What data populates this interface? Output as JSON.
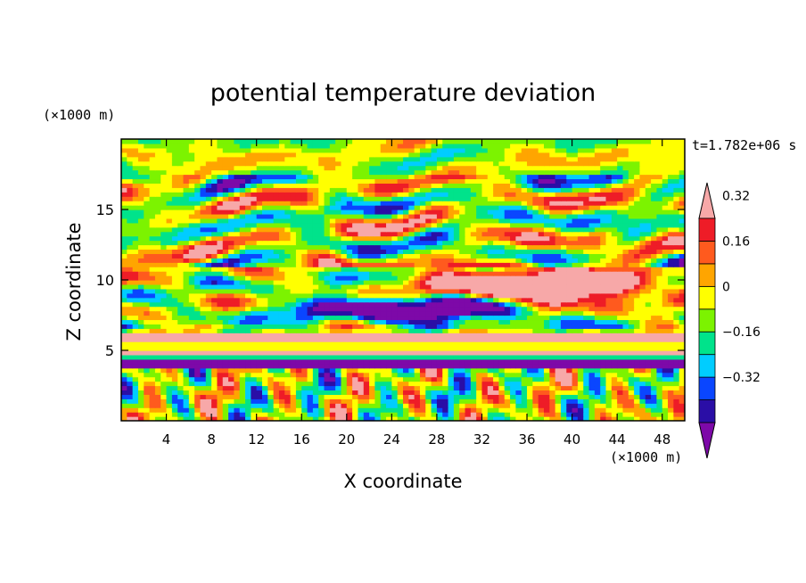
{
  "chart_data": {
    "type": "heatmap",
    "title": "potential temperature deviation",
    "xlabel": "X coordinate",
    "ylabel": "Z coordinate",
    "x_unit": "(×1000 m)",
    "y_unit": "(×1000 m)",
    "time_label": "t=1.782e+06 s",
    "xlim": [
      0,
      50
    ],
    "ylim": [
      0,
      20
    ],
    "x_ticks": [
      4,
      8,
      12,
      16,
      20,
      24,
      28,
      32,
      36,
      40,
      44,
      48
    ],
    "y_ticks": [
      5,
      10,
      15
    ],
    "colorbar": {
      "levels": [
        -0.48,
        -0.4,
        -0.32,
        -0.24,
        -0.16,
        -0.08,
        0,
        0.08,
        0.16,
        0.24,
        0.32,
        0.4
      ],
      "labels": [
        "0.32",
        "0.16",
        "0",
        "−0.16",
        "−0.32"
      ],
      "label_values": [
        0.32,
        0.16,
        0,
        -0.16,
        -0.32
      ],
      "colors": [
        "#7d09a8",
        "#2a0ea6",
        "#0a46ff",
        "#00cdff",
        "#00e38b",
        "#7cf300",
        "#ffff00",
        "#ffa500",
        "#ff5a1e",
        "#ee1c27",
        "#f7a8a8"
      ],
      "extend": "both"
    },
    "features": [
      {
        "name": "warm layer",
        "x_range": [
          0,
          50
        ],
        "z_range": [
          4.5,
          6.5
        ],
        "value": 0.4
      },
      {
        "name": "cold layer",
        "x_range": [
          0,
          50
        ],
        "z_range": [
          3.8,
          4.4
        ],
        "value": -0.44
      },
      {
        "name": "warm anomaly",
        "x_range": [
          22,
          48
        ],
        "z_range": [
          7,
          11
        ],
        "value": 0.4
      },
      {
        "name": "cold anomaly",
        "x_range": [
          14,
          46
        ],
        "z_range": [
          6.5,
          9.5
        ],
        "value": -0.44
      }
    ]
  }
}
